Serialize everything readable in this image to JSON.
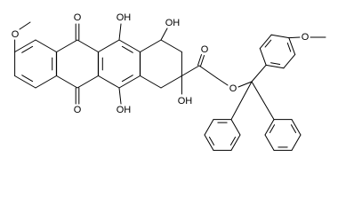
{
  "atom_labels": [
    "O",
    "O",
    "OH",
    "OH",
    "O",
    "O",
    "O",
    "O",
    "OH",
    "OH"
  ]
}
